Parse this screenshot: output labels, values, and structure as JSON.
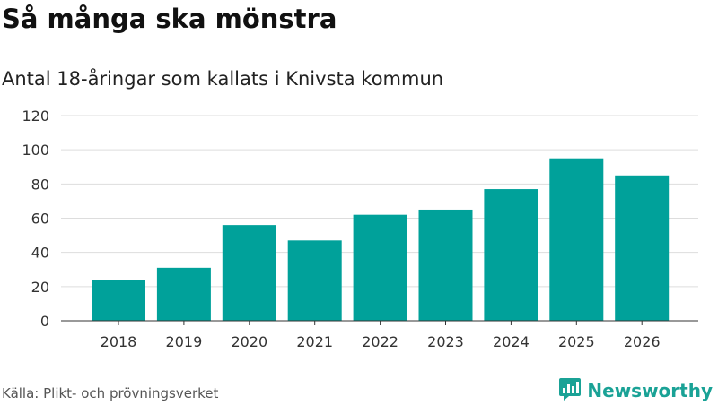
{
  "header": {
    "title": "Så många ska mönstra",
    "subtitle": "Antal 18-åringar som kallats i Knivsta kommun"
  },
  "footer": {
    "source": "Källa: Plikt- och prövningsverket",
    "brand": "Newsworthy",
    "brand_icon": "newsworthy-logo-icon"
  },
  "colors": {
    "bar": "#00a19a",
    "grid": "#dddddd",
    "brand": "#1aa296"
  },
  "chart_data": {
    "type": "bar",
    "title": "Så många ska mönstra",
    "subtitle": "Antal 18-åringar som kallats i Knivsta kommun",
    "xlabel": "",
    "ylabel": "",
    "categories": [
      "2018",
      "2019",
      "2020",
      "2021",
      "2022",
      "2023",
      "2024",
      "2025",
      "2026"
    ],
    "values": [
      24,
      31,
      56,
      47,
      62,
      65,
      77,
      95,
      85
    ],
    "ylim": [
      0,
      120
    ],
    "yticks": [
      0,
      20,
      40,
      60,
      80,
      100,
      120
    ],
    "grid": true,
    "legend": "none"
  }
}
